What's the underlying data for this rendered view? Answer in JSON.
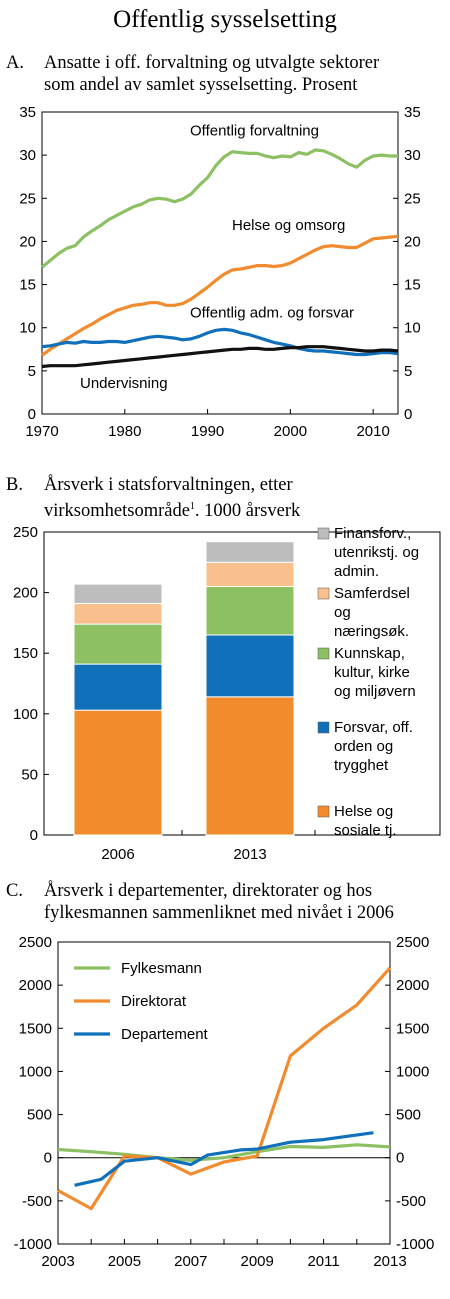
{
  "page_title": "Offentlig sysselsetting",
  "colors": {
    "green": "#8CC063",
    "orange": "#F28A2E",
    "blue": "#1070BA",
    "black": "#111111",
    "gray": "#BDBDBD",
    "peach": "#F9C08D"
  },
  "panels": {
    "a": {
      "letter": "A.",
      "line1": "Ansatte i  off. forvaltning og utvalgte sektorer",
      "line2": "som andel av samlet sysselsetting. Prosent"
    },
    "b": {
      "letter": "B.",
      "line1": "Årsverk i statsforvaltningen, etter",
      "line2_pre": "virksomhetsområde",
      "footnote": "1",
      "line2_post": ". 1000 årsverk"
    },
    "c": {
      "letter": "C.",
      "line1": "Årsverk i departementer, direktorater og hos",
      "line2": "fylkesmannen sammenliknet med nivået i 2006"
    }
  },
  "chart_data": [
    {
      "id": "A",
      "type": "line",
      "ylim": [
        0,
        35
      ],
      "xlim": [
        1970,
        2013
      ],
      "y_ticks": [
        0,
        5,
        10,
        15,
        20,
        25,
        30,
        35
      ],
      "x_ticks": [
        1970,
        1980,
        1990,
        2000,
        2010
      ],
      "series": [
        {
          "name": "Offentlig forvaltning",
          "color": "green",
          "x": [
            1970,
            1971,
            1972,
            1973,
            1974,
            1975,
            1976,
            1977,
            1978,
            1979,
            1980,
            1981,
            1982,
            1983,
            1984,
            1985,
            1986,
            1987,
            1988,
            1989,
            1990,
            1991,
            1992,
            1993,
            1994,
            1995,
            1996,
            1997,
            1998,
            1999,
            2000,
            2001,
            2002,
            2003,
            2004,
            2005,
            2006,
            2007,
            2008,
            2009,
            2010,
            2011,
            2012,
            2013
          ],
          "y": [
            17.0,
            17.8,
            18.6,
            19.2,
            19.5,
            20.5,
            21.2,
            21.8,
            22.5,
            23.0,
            23.5,
            24.0,
            24.3,
            24.8,
            25.0,
            24.9,
            24.6,
            24.9,
            25.5,
            26.5,
            27.4,
            28.8,
            29.8,
            30.4,
            30.3,
            30.2,
            30.2,
            29.9,
            29.7,
            29.9,
            29.8,
            30.3,
            30.1,
            30.6,
            30.5,
            30.1,
            29.6,
            29.0,
            28.6,
            29.4,
            29.9,
            30.0,
            29.9,
            29.9
          ]
        },
        {
          "name": "Helse og omsorg",
          "color": "orange",
          "x": [
            1970,
            1971,
            1972,
            1973,
            1974,
            1975,
            1976,
            1977,
            1978,
            1979,
            1980,
            1981,
            1982,
            1983,
            1984,
            1985,
            1986,
            1987,
            1988,
            1989,
            1990,
            1991,
            1992,
            1993,
            1994,
            1995,
            1996,
            1997,
            1998,
            1999,
            2000,
            2001,
            2002,
            2003,
            2004,
            2005,
            2006,
            2007,
            2008,
            2009,
            2010,
            2011,
            2012,
            2013
          ],
          "y": [
            6.8,
            7.5,
            8.1,
            8.7,
            9.3,
            9.9,
            10.4,
            11.0,
            11.5,
            12.0,
            12.3,
            12.6,
            12.7,
            12.9,
            12.9,
            12.6,
            12.6,
            12.8,
            13.3,
            14.0,
            14.7,
            15.5,
            16.2,
            16.7,
            16.8,
            17.0,
            17.2,
            17.2,
            17.1,
            17.2,
            17.5,
            18.0,
            18.5,
            19.0,
            19.4,
            19.5,
            19.4,
            19.3,
            19.3,
            19.8,
            20.3,
            20.4,
            20.5,
            20.6
          ]
        },
        {
          "name": "Offentlig adm. og forsvar",
          "color": "blue",
          "x": [
            1970,
            1971,
            1972,
            1973,
            1974,
            1975,
            1976,
            1977,
            1978,
            1979,
            1980,
            1981,
            1982,
            1983,
            1984,
            1985,
            1986,
            1987,
            1988,
            1989,
            1990,
            1991,
            1992,
            1993,
            1994,
            1995,
            1996,
            1997,
            1998,
            1999,
            2000,
            2001,
            2002,
            2003,
            2004,
            2005,
            2006,
            2007,
            2008,
            2009,
            2010,
            2011,
            2012,
            2013
          ],
          "y": [
            7.8,
            7.9,
            8.1,
            8.3,
            8.2,
            8.4,
            8.3,
            8.3,
            8.4,
            8.4,
            8.3,
            8.5,
            8.7,
            8.9,
            9.0,
            8.9,
            8.8,
            8.6,
            8.7,
            9.0,
            9.4,
            9.7,
            9.8,
            9.7,
            9.4,
            9.2,
            8.9,
            8.6,
            8.3,
            8.1,
            7.9,
            7.6,
            7.4,
            7.3,
            7.3,
            7.2,
            7.1,
            7.0,
            6.9,
            6.9,
            7.0,
            7.1,
            7.1,
            7.0
          ]
        },
        {
          "name": "Undervisning",
          "color": "black",
          "x": [
            1970,
            1971,
            1972,
            1973,
            1974,
            1975,
            1976,
            1977,
            1978,
            1979,
            1980,
            1981,
            1982,
            1983,
            1984,
            1985,
            1986,
            1987,
            1988,
            1989,
            1990,
            1991,
            1992,
            1993,
            1994,
            1995,
            1996,
            1997,
            1998,
            1999,
            2000,
            2001,
            2002,
            2003,
            2004,
            2005,
            2006,
            2007,
            2008,
            2009,
            2010,
            2011,
            2012,
            2013
          ],
          "y": [
            5.5,
            5.6,
            5.6,
            5.6,
            5.6,
            5.7,
            5.8,
            5.9,
            6.0,
            6.1,
            6.2,
            6.3,
            6.4,
            6.5,
            6.6,
            6.7,
            6.8,
            6.9,
            7.0,
            7.1,
            7.2,
            7.3,
            7.4,
            7.5,
            7.5,
            7.6,
            7.6,
            7.5,
            7.5,
            7.6,
            7.7,
            7.7,
            7.8,
            7.8,
            7.8,
            7.7,
            7.6,
            7.5,
            7.4,
            7.3,
            7.3,
            7.4,
            7.4,
            7.3
          ]
        }
      ],
      "labels": [
        "Offentlig forvaltning",
        "Helse og omsorg",
        "Offentlig adm. og forsvar",
        "Undervisning"
      ]
    },
    {
      "id": "B",
      "type": "bar",
      "stacked": true,
      "ylim": [
        0,
        250
      ],
      "y_ticks": [
        0,
        50,
        100,
        150,
        200,
        250
      ],
      "categories": [
        "2006",
        "2013"
      ],
      "series": [
        {
          "name": "Helse og sosiale tj.",
          "lines": [
            "Helse og",
            "sosiale tj."
          ],
          "color": "orange",
          "values": [
            103,
            114
          ]
        },
        {
          "name": "Forsvar, off. orden og trygghet",
          "lines": [
            "Forsvar, off.",
            "orden og",
            "trygghet"
          ],
          "color": "blue",
          "values": [
            38,
            51
          ]
        },
        {
          "name": "Kunnskap, kultur, kirke og miljøvern",
          "lines": [
            "Kunnskap,",
            "kultur, kirke",
            "og miljøvern"
          ],
          "color": "green",
          "values": [
            33,
            40
          ]
        },
        {
          "name": "Samferdsel og næringsøk.",
          "lines": [
            "Samferdsel",
            "og",
            "næringsøk."
          ],
          "color": "peach",
          "values": [
            17,
            20
          ]
        },
        {
          "name": "Finansforv., utenrikstj. og admin.",
          "lines": [
            "Finansforv.,",
            "utenrikstj. og",
            "admin."
          ],
          "color": "gray",
          "values": [
            16,
            17
          ]
        }
      ]
    },
    {
      "id": "C",
      "type": "line",
      "ylim": [
        -1000,
        2500
      ],
      "xlim": [
        2003,
        2013
      ],
      "y_ticks": [
        -1000,
        -500,
        0,
        500,
        1000,
        1500,
        2000,
        2500
      ],
      "x_ticks": [
        2003,
        2005,
        2007,
        2009,
        2011,
        2013
      ],
      "series": [
        {
          "name": "Fylkesmann",
          "color": "green",
          "x": [
            2003,
            2004,
            2005,
            2006,
            2007,
            2008,
            2009,
            2010,
            2011,
            2012,
            2013
          ],
          "y": [
            95,
            70,
            40,
            0,
            -30,
            0,
            70,
            130,
            120,
            150,
            125
          ]
        },
        {
          "name": "Direktorat",
          "color": "orange",
          "x": [
            2003,
            2004,
            2005,
            2006,
            2007,
            2008,
            2009,
            2010,
            2011,
            2012,
            2013
          ],
          "y": [
            -380,
            -590,
            20,
            0,
            -190,
            -50,
            20,
            1180,
            1500,
            1770,
            2200
          ]
        },
        {
          "name": "Departement",
          "color": "blue",
          "x": [
            2003.5,
            2004.3,
            2005,
            2006,
            2007,
            2007.5,
            2008.5,
            2009,
            2010,
            2011,
            2012.5
          ],
          "y": [
            -320,
            -250,
            -40,
            0,
            -80,
            30,
            90,
            100,
            180,
            210,
            290
          ]
        }
      ]
    }
  ]
}
